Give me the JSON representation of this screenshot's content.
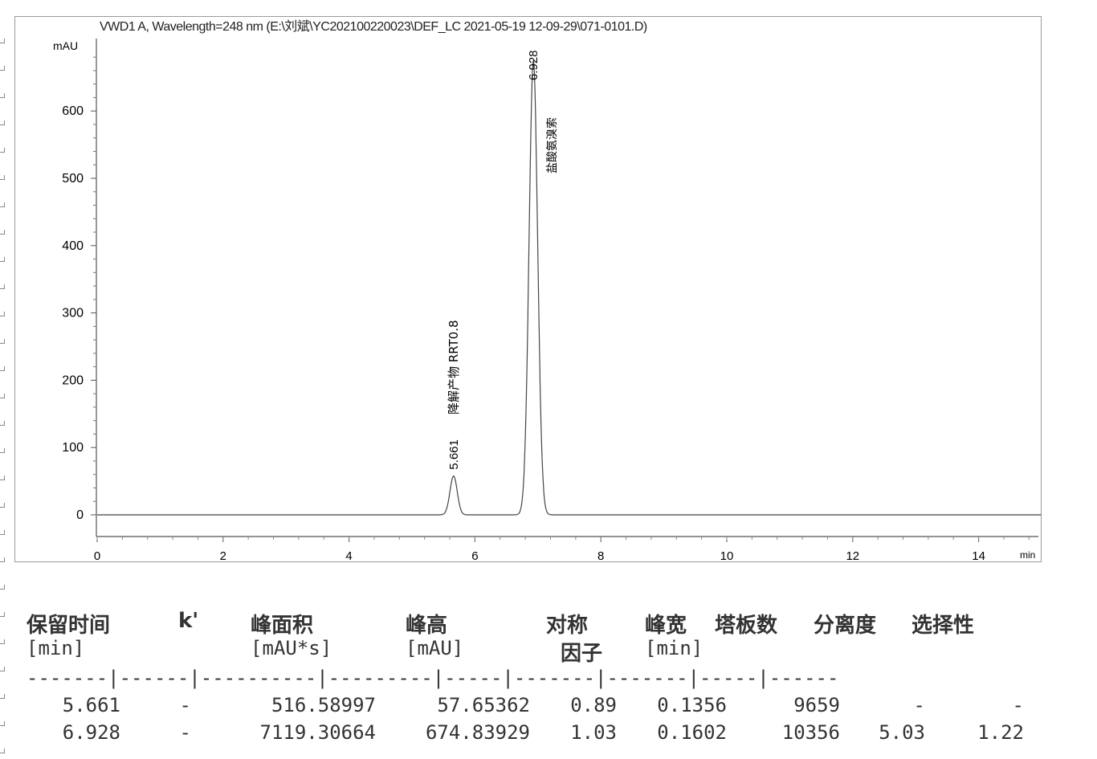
{
  "chart_data": {
    "type": "line",
    "title": "VWD1 A, Wavelength=248 nm (E:\\刘斌\\YC202100220023\\DEF_LC 2021-05-19 12-09-29\\071-0101.D)",
    "ylabel": "mAU",
    "xlabel": "min",
    "xlim": [
      0,
      15
    ],
    "ylim": [
      -30,
      707
    ],
    "xticks": [
      0,
      2,
      4,
      6,
      8,
      10,
      12,
      14
    ],
    "yticks": [
      0,
      100,
      200,
      300,
      400,
      500,
      600
    ],
    "grid": false,
    "peaks": [
      {
        "rt": 5.661,
        "height": 57.65362,
        "width": 0.1356,
        "rt_label": "5.661",
        "name": "降解产物 RRT0.8"
      },
      {
        "rt": 6.928,
        "height": 674.83929,
        "width": 0.1602,
        "rt_label": "6.928",
        "name": "盐酸氨溴索"
      }
    ],
    "color": "#444444"
  },
  "table": {
    "headers": [
      [
        "保留时间",
        "[min]"
      ],
      [
        "k'",
        ""
      ],
      [
        "峰面积",
        "[mAU*s]"
      ],
      [
        "峰高",
        "[mAU]"
      ],
      [
        "对称",
        "因子"
      ],
      [
        "峰宽",
        "[min]"
      ],
      [
        "塔板数",
        ""
      ],
      [
        "分离度",
        ""
      ],
      [
        "选择性",
        ""
      ]
    ],
    "separator": "-------|------|----------|---------|-----|-------|-------|-----|------",
    "rows": [
      [
        "5.661",
        "-",
        "516.58997",
        "57.65362",
        "0.89",
        "0.1356",
        "9659",
        "-",
        "-"
      ],
      [
        "6.928",
        "-",
        "7119.30664",
        "674.83929",
        "1.03",
        "0.1602",
        "10356",
        "5.03",
        "1.22"
      ]
    ]
  }
}
